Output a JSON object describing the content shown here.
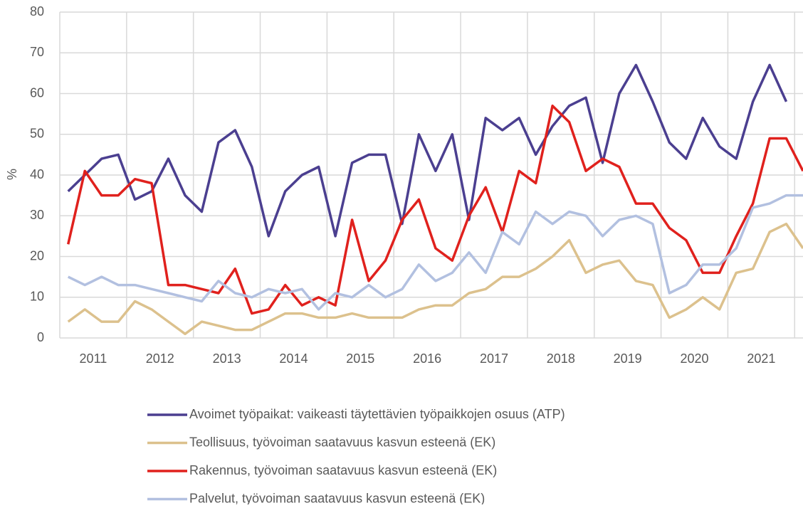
{
  "chart_data": {
    "type": "line",
    "y_label": "%",
    "x": [
      2011.125,
      2011.375,
      2011.625,
      2011.875,
      2012.125,
      2012.375,
      2012.625,
      2012.875,
      2013.125,
      2013.375,
      2013.625,
      2013.875,
      2014.125,
      2014.375,
      2014.625,
      2014.875,
      2015.125,
      2015.375,
      2015.625,
      2015.875,
      2016.125,
      2016.375,
      2016.625,
      2016.875,
      2017.125,
      2017.375,
      2017.625,
      2017.875,
      2018.125,
      2018.375,
      2018.625,
      2018.875,
      2019.125,
      2019.375,
      2019.625,
      2019.875,
      2020.125,
      2020.375,
      2020.625,
      2020.875,
      2021.125,
      2021.375,
      2021.625,
      2021.875,
      2022.125
    ],
    "xlim": [
      2011,
      2022.125
    ],
    "xgrid": [
      2011,
      2012,
      2013,
      2014,
      2015,
      2016,
      2017,
      2018,
      2019,
      2020,
      2021,
      2022
    ],
    "xticks": [
      {
        "value": 2011.5,
        "label": "2011"
      },
      {
        "value": 2012.5,
        "label": "2012"
      },
      {
        "value": 2013.5,
        "label": "2013"
      },
      {
        "value": 2014.5,
        "label": "2014"
      },
      {
        "value": 2015.5,
        "label": "2015"
      },
      {
        "value": 2016.5,
        "label": "2016"
      },
      {
        "value": 2017.5,
        "label": "2017"
      },
      {
        "value": 2018.5,
        "label": "2018"
      },
      {
        "value": 2019.5,
        "label": "2019"
      },
      {
        "value": 2020.5,
        "label": "2020"
      },
      {
        "value": 2021.5,
        "label": "2021"
      }
    ],
    "ylim": [
      0,
      80
    ],
    "yticks": [
      0,
      10,
      20,
      30,
      40,
      50,
      60,
      70,
      80
    ],
    "grid": true,
    "legend": "bottom",
    "series": [
      {
        "name": "Avoimet työpaikat: vaikeasti täytettävien työpaikkojen osuus (ATP)",
        "color": "#4b3f90",
        "values": [
          36,
          40,
          44,
          45,
          34,
          36,
          44,
          35,
          31,
          48,
          51,
          42,
          25,
          36,
          40,
          42,
          25,
          43,
          45,
          45,
          28,
          50,
          41,
          50,
          29,
          54,
          51,
          54,
          45,
          52,
          57,
          59,
          43,
          60,
          67,
          58,
          48,
          44,
          54,
          47,
          44,
          58,
          67,
          58,
          null
        ]
      },
      {
        "name": "Teollisuus, työvoiman saatavuus kasvun esteenä (EK)",
        "color": "#dcc18d",
        "values": [
          4,
          7,
          4,
          4,
          9,
          7,
          4,
          1,
          4,
          3,
          2,
          2,
          4,
          6,
          6,
          5,
          5,
          6,
          5,
          5,
          5,
          7,
          8,
          8,
          11,
          12,
          15,
          15,
          17,
          20,
          24,
          16,
          18,
          19,
          14,
          13,
          5,
          7,
          10,
          7,
          16,
          17,
          26,
          28,
          22
        ]
      },
      {
        "name": "Rakennus, työvoiman saatavuus kasvun esteenä (EK)",
        "color": "#e0211d",
        "values": [
          23,
          41,
          35,
          35,
          39,
          38,
          13,
          13,
          12,
          11,
          17,
          6,
          7,
          13,
          8,
          10,
          8,
          29,
          14,
          19,
          29,
          34,
          22,
          19,
          30,
          37,
          26,
          41,
          38,
          57,
          53,
          41,
          44,
          42,
          33,
          33,
          27,
          24,
          16,
          16,
          25,
          33,
          49,
          49,
          41
        ]
      },
      {
        "name": "Palvelut, työvoiman saatavuus kasvun esteenä (EK)",
        "color": "#b2c0e0",
        "values": [
          15,
          13,
          15,
          13,
          13,
          12,
          11,
          10,
          9,
          14,
          11,
          10,
          12,
          11,
          12,
          7,
          11,
          10,
          13,
          10,
          12,
          18,
          14,
          16,
          21,
          16,
          26,
          23,
          31,
          28,
          31,
          30,
          25,
          29,
          30,
          28,
          11,
          13,
          18,
          18,
          22,
          32,
          33,
          35,
          35
        ]
      }
    ]
  }
}
